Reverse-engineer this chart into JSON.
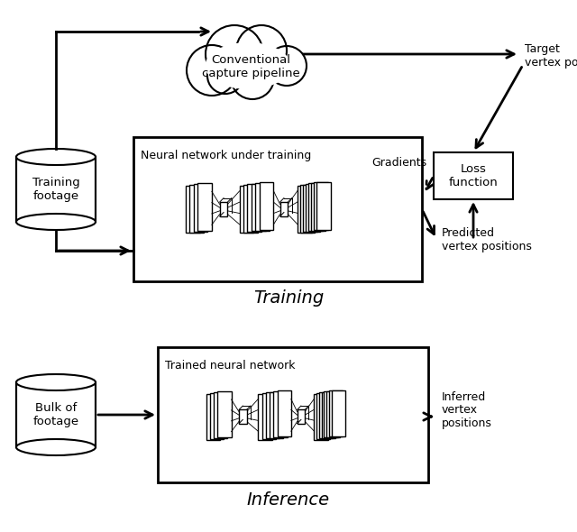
{
  "title_training": "Training",
  "title_inference": "Inference",
  "bg_color": "#ffffff",
  "text_color": "#000000",
  "cloud_text": "Conventional\ncapture pipeline",
  "nn_training_text": "Neural network under training",
  "nn_inference_text": "Trained neural network",
  "training_footage_text": "Training\nfootage",
  "bulk_footage_text": "Bulk of\nfootage",
  "target_vertex_text": "Target\nvertex positions",
  "predicted_vertex_text": "Predicted\nvertex positions",
  "loss_function_text": "Loss\nfunction",
  "gradients_text": "Gradients",
  "inferred_vertex_text": "Inferred\nvertex\npositions"
}
